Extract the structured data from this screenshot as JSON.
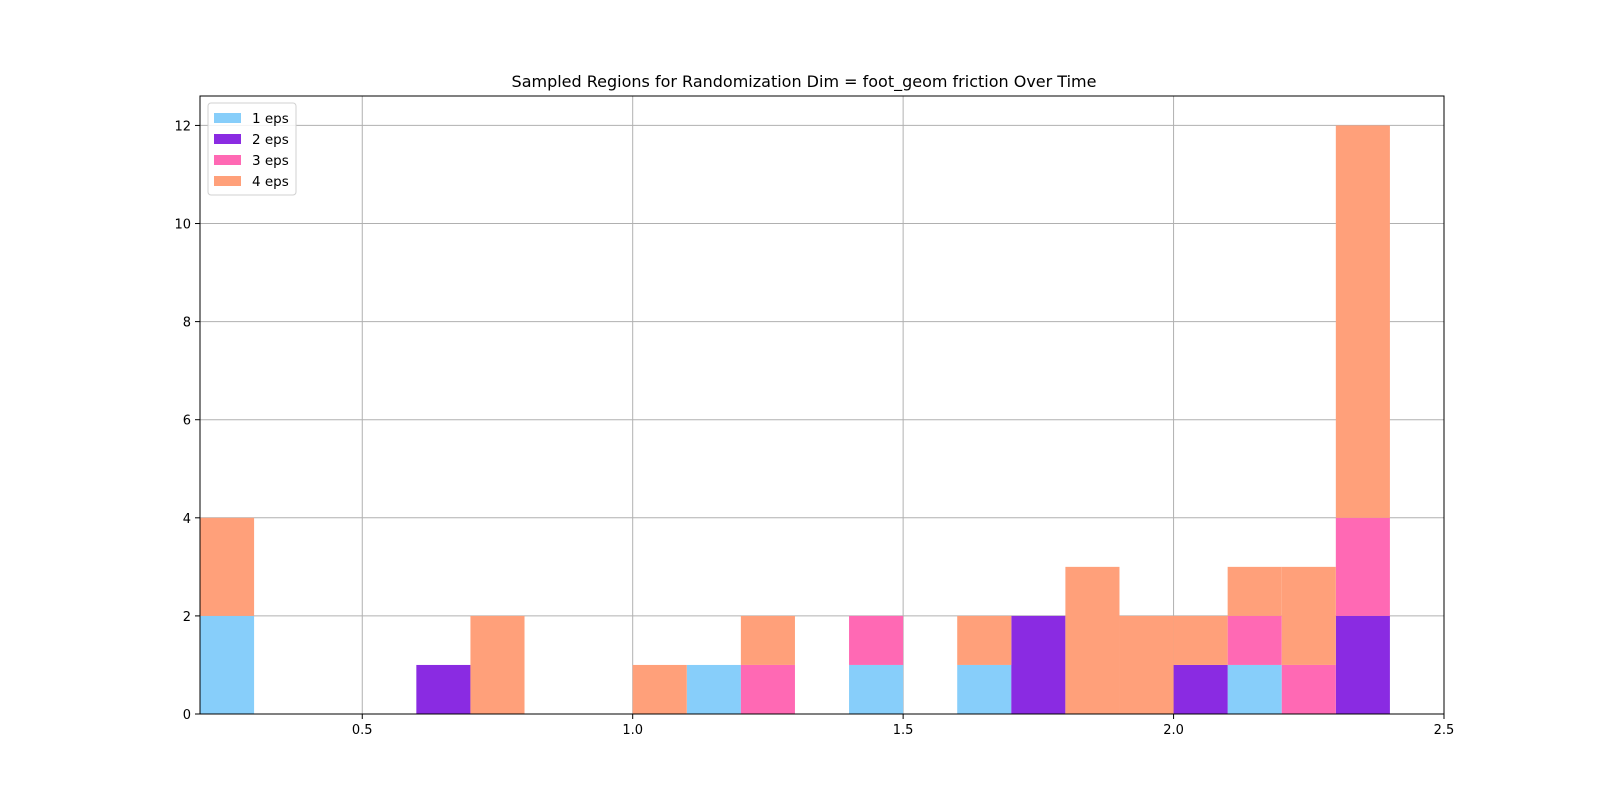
{
  "chart_data": {
    "type": "bar",
    "title": "Sampled Regions for Randomization Dim = foot_geom friction Over Time",
    "xlabel": "",
    "ylabel": "",
    "xlim": [
      0.2,
      2.5
    ],
    "ylim": [
      0,
      12.6
    ],
    "x_ticks": [
      "0.5",
      "1.0",
      "1.5",
      "2.0",
      "2.5"
    ],
    "y_ticks": [
      "0",
      "2",
      "4",
      "6",
      "8",
      "10",
      "12"
    ],
    "grid": true,
    "legend_position": "top-left",
    "bin_width": 0.1,
    "series": [
      {
        "name": "1 eps",
        "color": "#87cefa",
        "bars": [
          {
            "x": 0.2,
            "bottom": 0,
            "height": 2
          },
          {
            "x": 1.1,
            "bottom": 0,
            "height": 1
          },
          {
            "x": 1.4,
            "bottom": 0,
            "height": 1
          },
          {
            "x": 1.6,
            "bottom": 0,
            "height": 1
          },
          {
            "x": 2.1,
            "bottom": 0,
            "height": 1
          }
        ]
      },
      {
        "name": "2 eps",
        "color": "#8a2be2",
        "bars": [
          {
            "x": 0.6,
            "bottom": 0,
            "height": 1
          },
          {
            "x": 1.7,
            "bottom": 0,
            "height": 2
          },
          {
            "x": 2.0,
            "bottom": 0,
            "height": 1
          },
          {
            "x": 2.3,
            "bottom": 0,
            "height": 2
          }
        ]
      },
      {
        "name": "3 eps",
        "color": "#ff69b4",
        "bars": [
          {
            "x": 1.2,
            "bottom": 0,
            "height": 1
          },
          {
            "x": 1.4,
            "bottom": 1,
            "height": 1
          },
          {
            "x": 2.1,
            "bottom": 1,
            "height": 1
          },
          {
            "x": 2.2,
            "bottom": 0,
            "height": 1
          },
          {
            "x": 2.3,
            "bottom": 2,
            "height": 2
          }
        ]
      },
      {
        "name": "4 eps",
        "color": "#ffa07a",
        "bars": [
          {
            "x": 0.2,
            "bottom": 2,
            "height": 2
          },
          {
            "x": 0.7,
            "bottom": 0,
            "height": 2
          },
          {
            "x": 1.0,
            "bottom": 0,
            "height": 1
          },
          {
            "x": 1.2,
            "bottom": 1,
            "height": 1
          },
          {
            "x": 1.6,
            "bottom": 1,
            "height": 1
          },
          {
            "x": 1.8,
            "bottom": 0,
            "height": 3
          },
          {
            "x": 1.9,
            "bottom": 0,
            "height": 2
          },
          {
            "x": 2.0,
            "bottom": 1,
            "height": 1
          },
          {
            "x": 2.1,
            "bottom": 2,
            "height": 1
          },
          {
            "x": 2.2,
            "bottom": 1,
            "height": 2
          },
          {
            "x": 2.3,
            "bottom": 4,
            "height": 8
          }
        ]
      }
    ]
  }
}
